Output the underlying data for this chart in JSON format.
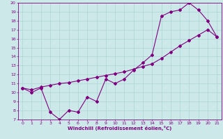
{
  "xlabel": "Windchill (Refroidissement éolien,°C)",
  "line1_x": [
    0,
    1,
    2,
    3,
    4,
    5,
    6,
    7,
    8,
    9,
    10,
    11,
    12,
    13,
    14,
    15,
    16,
    17,
    18,
    19,
    20,
    21
  ],
  "line1_y": [
    10.5,
    10.0,
    10.5,
    7.8,
    7.0,
    8.0,
    7.8,
    9.5,
    9.0,
    11.5,
    11.0,
    11.5,
    12.5,
    13.3,
    14.2,
    18.5,
    19.0,
    19.2,
    20.0,
    19.2,
    18.0,
    16.2
  ],
  "line2_x": [
    0,
    1,
    2,
    3,
    4,
    5,
    6,
    7,
    8,
    9,
    10,
    11,
    12,
    13,
    14,
    15,
    16,
    17,
    18,
    19,
    20,
    21
  ],
  "line2_y": [
    10.5,
    10.3,
    10.6,
    10.8,
    11.0,
    11.1,
    11.3,
    11.5,
    11.7,
    11.9,
    12.1,
    12.3,
    12.6,
    12.9,
    13.2,
    13.8,
    14.5,
    15.2,
    15.8,
    16.4,
    17.0,
    16.2
  ],
  "line_color": "#800080",
  "bg_color": "#cce8e8",
  "grid_color": "#aad4d4",
  "xlim_min": -0.5,
  "xlim_max": 21.5,
  "ylim_min": 7,
  "ylim_max": 20,
  "xticks": [
    0,
    1,
    2,
    3,
    4,
    5,
    6,
    7,
    8,
    9,
    10,
    11,
    12,
    13,
    14,
    15,
    16,
    17,
    18,
    19,
    20,
    21
  ],
  "yticks": [
    7,
    8,
    9,
    10,
    11,
    12,
    13,
    14,
    15,
    16,
    17,
    18,
    19,
    20
  ],
  "marker": "D",
  "markersize": 2,
  "linewidth": 0.8,
  "tick_fontsize": 4.5,
  "xlabel_fontsize": 5.0
}
